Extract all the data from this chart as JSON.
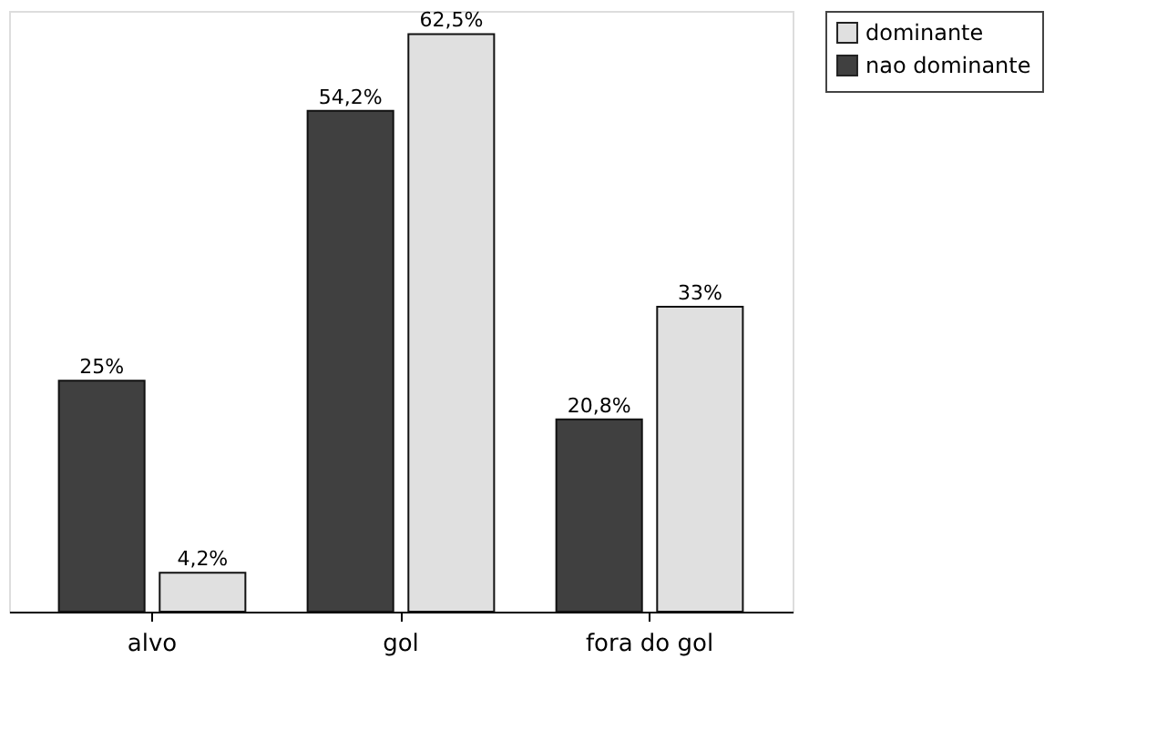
{
  "chart_data": {
    "type": "bar",
    "categories": [
      "alvo",
      "gol",
      "fora do gol"
    ],
    "series": [
      {
        "name": "nao dominante",
        "color": "#404040",
        "values": [
          25,
          54.2,
          20.8
        ],
        "value_labels": [
          "25%",
          "54,2%",
          "20,8%"
        ]
      },
      {
        "name": "dominante",
        "color": "#e0e0e0",
        "values": [
          4.2,
          62.5,
          33
        ],
        "value_labels": [
          "4,2%",
          "62,5%",
          "33%"
        ]
      }
    ],
    "legend": "right",
    "grid": false
  }
}
